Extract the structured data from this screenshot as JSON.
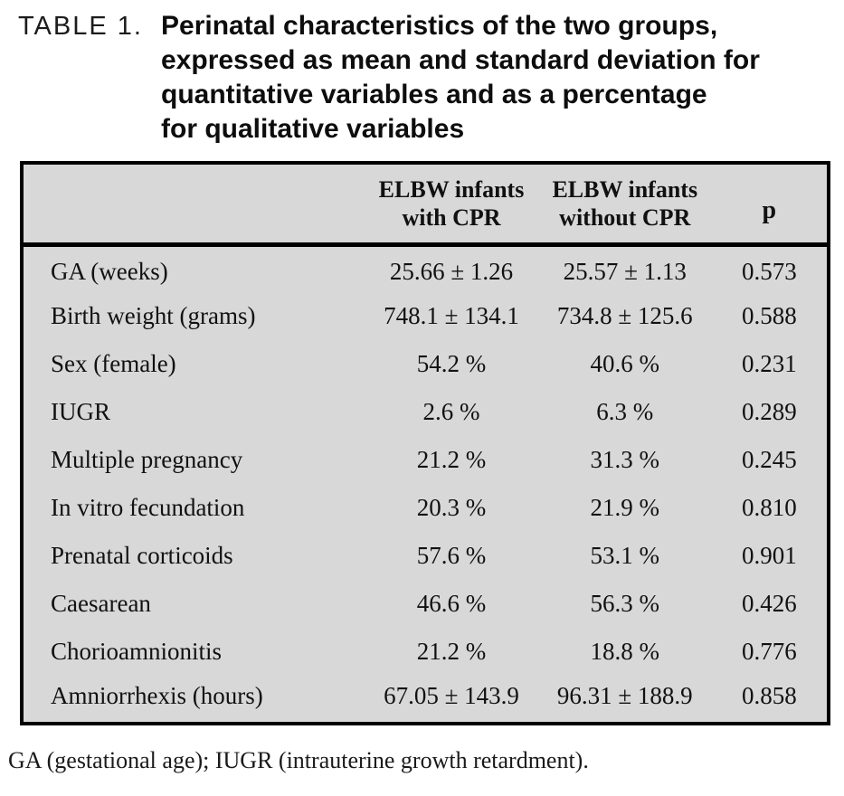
{
  "title": {
    "label": "TABLE 1.",
    "lines": [
      "Perinatal characteristics of the two groups,",
      "expressed as mean and standard deviation for",
      "quantitative variables and as a percentage",
      "for qualitative variables"
    ]
  },
  "table": {
    "background_color": "#d8d8d8",
    "border_color": "#000000",
    "header": {
      "group1_line1": "ELBW infants",
      "group1_line2": "with CPR",
      "group2_line1": "ELBW infants",
      "group2_line2": "without CPR",
      "p": "p"
    },
    "rows": [
      {
        "label": "GA (weeks)",
        "with_cpr": "25.66 ± 1.26",
        "without_cpr": "25.57 ± 1.13",
        "p": "0.573"
      },
      {
        "label": "Birth weight (grams)",
        "with_cpr": "748.1 ± 134.1",
        "without_cpr": "734.8 ± 125.6",
        "p": "0.588"
      },
      {
        "label": "Sex (female)",
        "with_cpr": "54.2 %",
        "without_cpr": "40.6 %",
        "p": "0.231"
      },
      {
        "label": "IUGR",
        "with_cpr": "2.6 %",
        "without_cpr": "6.3 %",
        "p": "0.289"
      },
      {
        "label": "Multiple pregnancy",
        "with_cpr": "21.2 %",
        "without_cpr": "31.3 %",
        "p": "0.245"
      },
      {
        "label": "In vitro fecundation",
        "with_cpr": "20.3 %",
        "without_cpr": "21.9 %",
        "p": "0.810"
      },
      {
        "label": "Prenatal corticoids",
        "with_cpr": "57.6 %",
        "without_cpr": "53.1 %",
        "p": "0.901"
      },
      {
        "label": "Caesarean",
        "with_cpr": "46.6 %",
        "without_cpr": "56.3 %",
        "p": "0.426"
      },
      {
        "label": "Chorioamnionitis",
        "with_cpr": "21.2 %",
        "without_cpr": "18.8 %",
        "p": "0.776"
      },
      {
        "label": "Amniorrhexis (hours)",
        "with_cpr": "67.05 ± 143.9",
        "without_cpr": "96.31 ± 188.9",
        "p": "0.858"
      }
    ]
  },
  "footnote": "GA (gestational age); IUGR (intrauterine growth retardment)."
}
